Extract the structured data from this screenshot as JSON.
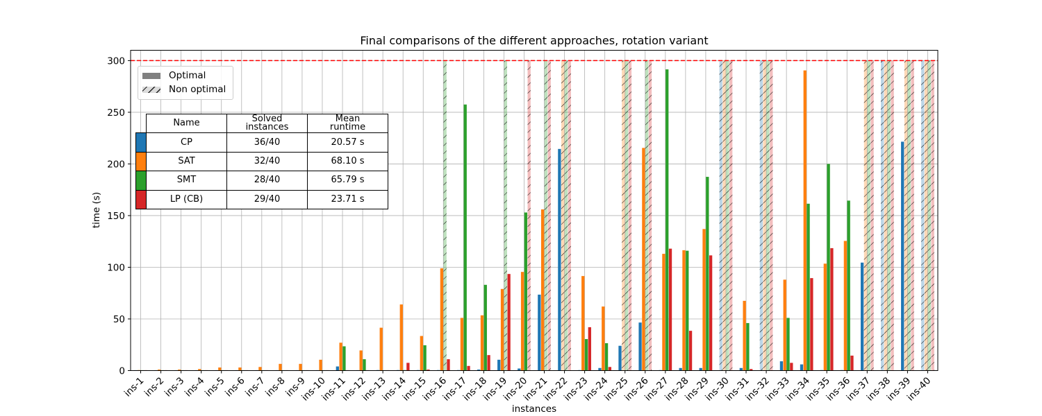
{
  "chart_data": {
    "type": "bar",
    "title": "Final comparisons of the different approaches, rotation variant",
    "xlabel": "instances",
    "ylabel": "time (s)",
    "ylim": [
      0,
      310
    ],
    "yticks": [
      0,
      50,
      100,
      150,
      200,
      250,
      300
    ],
    "grid": true,
    "timeout_line": 300,
    "timeout_line_color": "#ff0000",
    "categories": [
      "ins-1",
      "ins-2",
      "ins-3",
      "ins-4",
      "ins-5",
      "ins-6",
      "ins-7",
      "ins-8",
      "ins-9",
      "ins-10",
      "ins-11",
      "ins-12",
      "ins-13",
      "ins-14",
      "ins-15",
      "ins-16",
      "ins-17",
      "ins-18",
      "ins-19",
      "ins-20",
      "ins-21",
      "ins-22",
      "ins-23",
      "ins-24",
      "ins-25",
      "ins-26",
      "ins-27",
      "ins-28",
      "ins-29",
      "ins-30",
      "ins-31",
      "ins-32",
      "ins-33",
      "ins-34",
      "ins-35",
      "ins-36",
      "ins-37",
      "ins-38",
      "ins-39",
      "ins-40"
    ],
    "series": [
      {
        "name": "CP",
        "color": "#1f77b4",
        "values": [
          0.1,
          0.1,
          0.1,
          0.2,
          0.2,
          0.2,
          0.3,
          0.3,
          0.3,
          0.3,
          4,
          0.3,
          0.5,
          0.5,
          0.5,
          0.5,
          0.5,
          1,
          10.5,
          2,
          73.5,
          214.5,
          0.5,
          2.5,
          24,
          46.5,
          0.5,
          2.5,
          2.5,
          300,
          2.5,
          300,
          9,
          6,
          0.5,
          0.5,
          104.5,
          300,
          221.5,
          300
        ],
        "optimal": [
          true,
          true,
          true,
          true,
          true,
          true,
          true,
          true,
          true,
          true,
          true,
          true,
          true,
          true,
          true,
          true,
          true,
          true,
          true,
          true,
          true,
          true,
          true,
          true,
          true,
          true,
          true,
          true,
          true,
          false,
          true,
          false,
          true,
          true,
          true,
          true,
          true,
          false,
          true,
          false
        ]
      },
      {
        "name": "SAT",
        "color": "#ff7f0e",
        "values": [
          0.5,
          1,
          1,
          1.5,
          3,
          3,
          3.5,
          6.5,
          6.5,
          10.5,
          27,
          19.5,
          41.5,
          64,
          33.5,
          99,
          51,
          53.5,
          79,
          95.5,
          156,
          300,
          91.5,
          62,
          300,
          215.5,
          113,
          116.5,
          137,
          300,
          67.5,
          300,
          88,
          290.5,
          103.5,
          125.5,
          300,
          300,
          300,
          300
        ],
        "optimal": [
          true,
          true,
          true,
          true,
          true,
          true,
          true,
          true,
          true,
          true,
          true,
          true,
          true,
          true,
          true,
          true,
          true,
          true,
          true,
          true,
          true,
          false,
          true,
          true,
          false,
          true,
          true,
          true,
          true,
          false,
          true,
          false,
          true,
          true,
          true,
          true,
          false,
          false,
          false,
          false
        ]
      },
      {
        "name": "SMT",
        "color": "#2ca02c",
        "values": [
          0.1,
          0.1,
          0.1,
          0.1,
          0.1,
          0.1,
          0.1,
          0.1,
          0.1,
          0.2,
          23.5,
          11,
          0.3,
          0.5,
          24.5,
          300,
          257.5,
          83,
          300,
          153,
          300,
          300,
          30.5,
          26.5,
          300,
          300,
          291.5,
          116,
          187.5,
          300,
          46,
          300,
          51,
          161.5,
          200,
          164.5,
          300,
          300,
          300,
          300
        ],
        "optimal": [
          true,
          true,
          true,
          true,
          true,
          true,
          true,
          true,
          true,
          true,
          true,
          true,
          true,
          true,
          true,
          false,
          true,
          true,
          false,
          true,
          false,
          false,
          true,
          true,
          false,
          false,
          true,
          true,
          true,
          false,
          true,
          false,
          true,
          true,
          true,
          true,
          false,
          false,
          false,
          false
        ]
      },
      {
        "name": "LP (CB)",
        "color": "#d62728",
        "values": [
          0.1,
          0.1,
          0.1,
          0.1,
          0.1,
          0.1,
          0.1,
          0.1,
          0.1,
          0.1,
          0.1,
          0.1,
          0.1,
          7.5,
          1,
          11,
          4.5,
          15,
          93.5,
          300,
          300,
          300,
          42,
          3.5,
          300,
          300,
          118,
          38.5,
          111.5,
          300,
          1.5,
          300,
          7.5,
          89.5,
          118.5,
          14.5,
          300,
          300,
          300,
          300
        ],
        "optimal": [
          true,
          true,
          true,
          true,
          true,
          true,
          true,
          true,
          true,
          true,
          true,
          true,
          true,
          true,
          true,
          true,
          true,
          true,
          true,
          false,
          false,
          false,
          true,
          true,
          false,
          false,
          true,
          true,
          true,
          false,
          true,
          false,
          true,
          true,
          true,
          true,
          false,
          false,
          false,
          false
        ]
      }
    ],
    "legend": {
      "placement": "upper-left",
      "items": [
        "Optimal",
        "Non optimal"
      ]
    }
  },
  "summary_table": {
    "headers": {
      "name": "Name",
      "solved": "Solved\ninstances",
      "mean": "Mean\nruntime"
    },
    "rows": [
      {
        "color": "#1f77b4",
        "name": "CP",
        "solved": "36/40",
        "mean": "20.57 s"
      },
      {
        "color": "#ff7f0e",
        "name": "SAT",
        "solved": "32/40",
        "mean": "68.10 s"
      },
      {
        "color": "#2ca02c",
        "name": "SMT",
        "solved": "28/40",
        "mean": "65.79 s"
      },
      {
        "color": "#d62728",
        "name": "LP (CB)",
        "solved": "29/40",
        "mean": "23.71 s"
      }
    ]
  }
}
